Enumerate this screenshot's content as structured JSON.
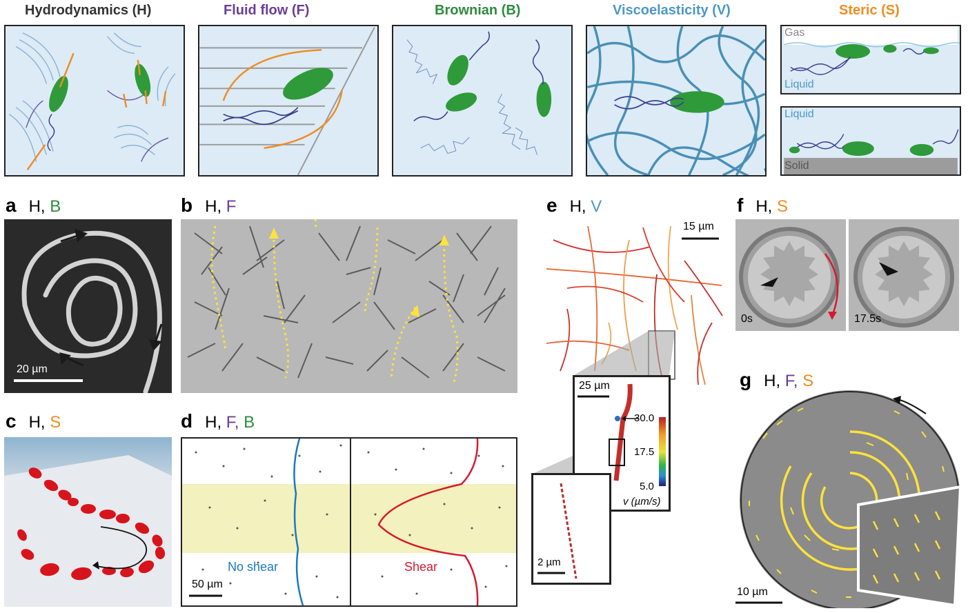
{
  "headers": {
    "hydro": "Hydrodynamics (H)",
    "fluid": "Fluid flow (F)",
    "brown": "Brownian (B)",
    "visco": "Viscoelasticity (V)",
    "steric": "Steric (S)"
  },
  "steric_labels": {
    "gas": "Gas",
    "liquid_top": "Liquid",
    "liquid_bottom": "Liquid",
    "solid": "Solid"
  },
  "panels": {
    "a": {
      "letter": "a",
      "h": "H,",
      "x": "B",
      "scalebar": "20 µm"
    },
    "b": {
      "letter": "b",
      "h": "H,",
      "x": "F"
    },
    "c": {
      "letter": "c",
      "h": "H,",
      "x": "S"
    },
    "d": {
      "letter": "d",
      "h": "H,",
      "x1": "F,",
      "x2": "B",
      "scalebar": "50 µm",
      "no_shear": "No shear",
      "shear": "Shear"
    },
    "e": {
      "letter": "e",
      "h": "H,",
      "x": "V",
      "scalebar": "15 µm",
      "inset_scalebar": "25 µm",
      "inset2_scalebar": "2 µm",
      "colorbar_ticks": [
        "30.0",
        "17.5",
        "5.0"
      ],
      "colorbar_label": "v (µm/s)"
    },
    "f": {
      "letter": "f",
      "h": "H,",
      "x": "S",
      "t0": "0s",
      "t1": "17.5s"
    },
    "g": {
      "letter": "g",
      "h": "H,",
      "x1": "F,",
      "x2": "S",
      "scalebar": "10 µm"
    }
  },
  "colors": {
    "hydro": "#333333",
    "fluid": "#6a3d9a",
    "brown": "#2e8b3e",
    "visco": "#4d97c9",
    "steric": "#f08c22",
    "box_bg": "#dcebf6",
    "bacterium": "#2f9a3a",
    "arrow": "#f08c22",
    "shear": "#d7192e",
    "noshear": "#1b78c2"
  }
}
